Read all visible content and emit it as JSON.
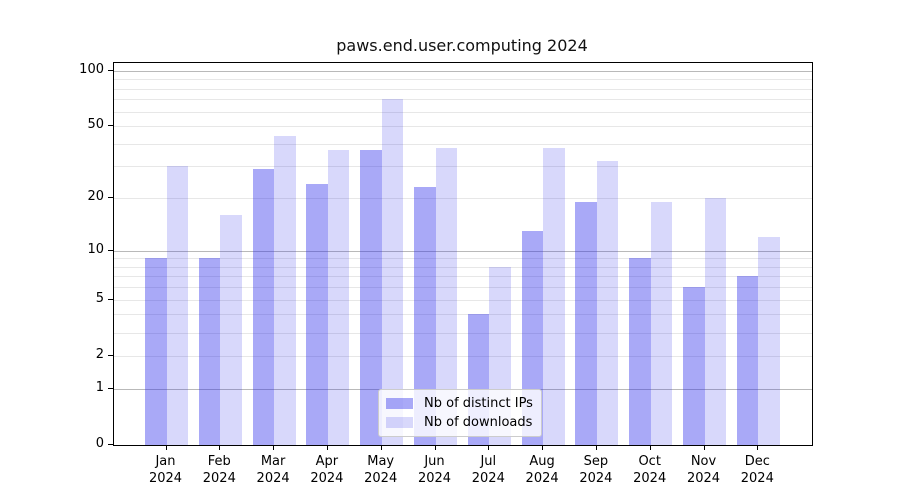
{
  "chart_data": {
    "type": "bar",
    "title": "paws.end.user.computing 2024",
    "categories": [
      {
        "month": "Jan",
        "year": "2024"
      },
      {
        "month": "Feb",
        "year": "2024"
      },
      {
        "month": "Mar",
        "year": "2024"
      },
      {
        "month": "Apr",
        "year": "2024"
      },
      {
        "month": "May",
        "year": "2024"
      },
      {
        "month": "Jun",
        "year": "2024"
      },
      {
        "month": "Jul",
        "year": "2024"
      },
      {
        "month": "Aug",
        "year": "2024"
      },
      {
        "month": "Sep",
        "year": "2024"
      },
      {
        "month": "Oct",
        "year": "2024"
      },
      {
        "month": "Nov",
        "year": "2024"
      },
      {
        "month": "Dec",
        "year": "2024"
      }
    ],
    "series": [
      {
        "name": "Nb of distinct IPs",
        "color": "rgba(40,40,235,0.4)",
        "values": [
          9,
          9,
          29,
          24,
          37,
          23,
          4,
          13,
          19,
          9,
          6,
          7
        ]
      },
      {
        "name": "Nb of downloads",
        "color": "rgba(40,40,235,0.18)",
        "values": [
          30,
          16,
          44,
          37,
          70,
          38,
          8,
          38,
          32,
          19,
          20,
          12
        ]
      }
    ],
    "xlabel": "",
    "ylabel": "",
    "yscale": "log1p",
    "ylim": [
      0,
      110
    ],
    "yticks": [
      0,
      1,
      2,
      5,
      10,
      20,
      50,
      100
    ],
    "gridlines": {
      "major": [
        1,
        10,
        100
      ],
      "minor": [
        2,
        3,
        4,
        5,
        6,
        7,
        8,
        9,
        20,
        30,
        40,
        50,
        60,
        70,
        80,
        90
      ]
    },
    "grid": "on",
    "legend_position": "lower center"
  },
  "colors": {
    "axis": "#000000",
    "grid_major": "#b9b9b9",
    "grid_minor": "#e7e7e7",
    "legend_border": "#cccccc",
    "legend_background": "rgba(255,255,255,0.8)"
  }
}
